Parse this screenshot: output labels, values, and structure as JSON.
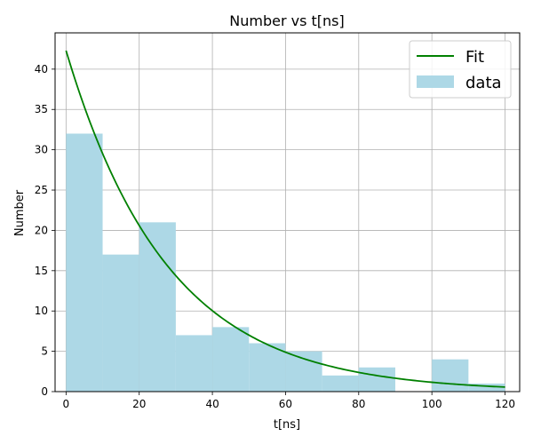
{
  "chart_data": {
    "type": "bar",
    "title": "Number vs t[ns]",
    "xlabel": "t[ns]",
    "ylabel": "Number",
    "xlim": [
      -3,
      124
    ],
    "ylim": [
      0,
      44.5
    ],
    "xticks": [
      0,
      20,
      40,
      60,
      80,
      100,
      120
    ],
    "yticks": [
      0,
      5,
      10,
      15,
      20,
      25,
      30,
      35,
      40
    ],
    "grid": true,
    "legend_position": "upper right",
    "series": [
      {
        "name": "data",
        "kind": "histogram",
        "color": "#add8e6",
        "bins": [
          {
            "start": 0,
            "end": 10,
            "count": 32
          },
          {
            "start": 10,
            "end": 20,
            "count": 17
          },
          {
            "start": 20,
            "end": 30,
            "count": 21
          },
          {
            "start": 30,
            "end": 40,
            "count": 7
          },
          {
            "start": 40,
            "end": 50,
            "count": 8
          },
          {
            "start": 50,
            "end": 60,
            "count": 6
          },
          {
            "start": 60,
            "end": 70,
            "count": 5
          },
          {
            "start": 70,
            "end": 80,
            "count": 2
          },
          {
            "start": 80,
            "end": 90,
            "count": 3
          },
          {
            "start": 90,
            "end": 100,
            "count": 0
          },
          {
            "start": 100,
            "end": 110,
            "count": 4
          },
          {
            "start": 110,
            "end": 120,
            "count": 1
          }
        ]
      },
      {
        "name": "Fit",
        "kind": "line",
        "color": "#008000",
        "function": "exponential decay",
        "amplitude": 42.3,
        "decay_constant_ns": 27.8,
        "x_range": [
          0,
          120
        ]
      }
    ],
    "legend": [
      "Fit",
      "data"
    ]
  }
}
